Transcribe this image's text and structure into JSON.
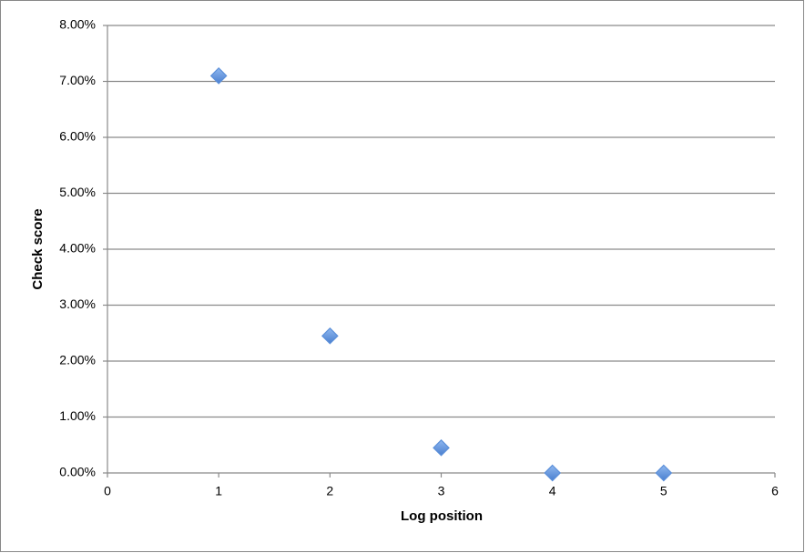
{
  "chart_data": {
    "type": "scatter",
    "x_label": "Log position",
    "y_label": "Check score",
    "x": [
      1,
      2,
      3,
      4,
      5
    ],
    "values": [
      7.1,
      2.45,
      0.45,
      0,
      0
    ],
    "color": "#5b8fd9",
    "xlim": [
      0,
      6
    ],
    "xticks": [
      0,
      1,
      2,
      3,
      4,
      5,
      6
    ],
    "ylim": [
      0,
      8
    ],
    "yticks": [
      {
        "value": 0,
        "label": "0.00%"
      },
      {
        "value": 1,
        "label": "1.00%"
      },
      {
        "value": 2,
        "label": "2.00%"
      },
      {
        "value": 3,
        "label": "3.00%"
      },
      {
        "value": 4,
        "label": "4.00%"
      },
      {
        "value": 5,
        "label": "5.00%"
      },
      {
        "value": 6,
        "label": "6.00%"
      },
      {
        "value": 7,
        "label": "7.00%"
      },
      {
        "value": 8,
        "label": "8.00%"
      }
    ],
    "grid": true
  }
}
